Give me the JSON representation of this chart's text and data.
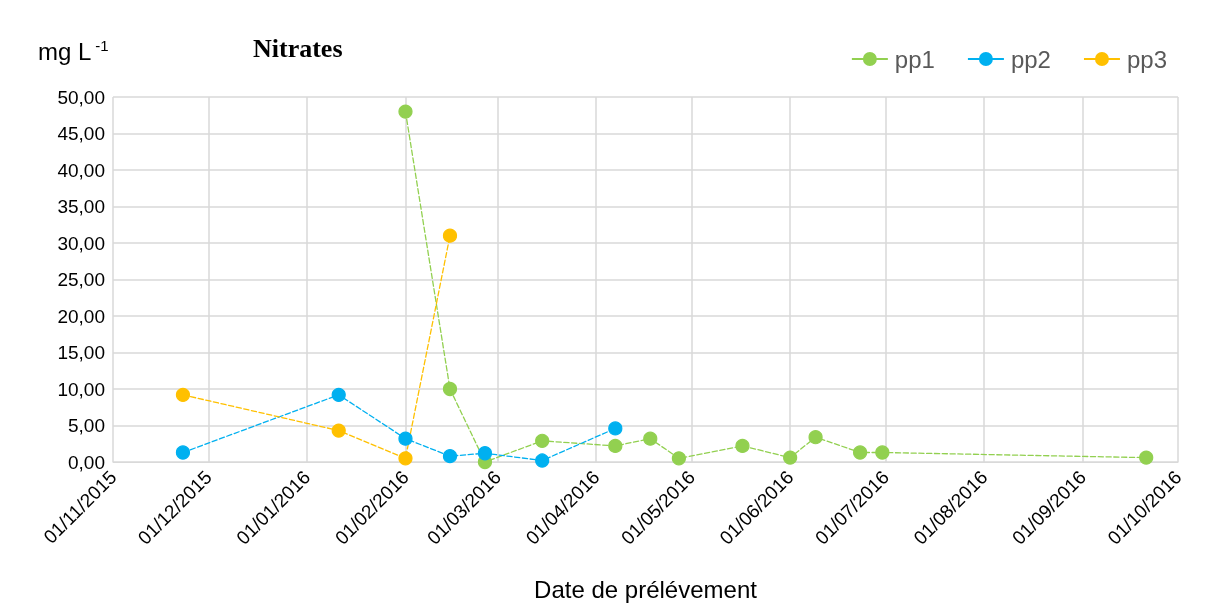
{
  "chart_data": {
    "type": "line",
    "title": "Nitrates",
    "xlabel": "Date de prélévement",
    "ylabel": "mg L$^{-1}$",
    "series": [
      {
        "name": "pp1",
        "color": "#92d050",
        "x": [
          "2016-02-01",
          "2016-02-15",
          "2016-02-26",
          "2016-03-15",
          "2016-04-07",
          "2016-04-18",
          "2016-04-27",
          "2016-05-17",
          "2016-06-01",
          "2016-06-09",
          "2016-06-23",
          "2016-06-30",
          "2016-09-21"
        ],
        "values": [
          48,
          10,
          0,
          2.9,
          2.2,
          3.2,
          0.5,
          2.2,
          0.6,
          3.4,
          1.3,
          1.3,
          0.6
        ]
      },
      {
        "name": "pp2",
        "color": "#00b0f0",
        "x": [
          "2015-11-23",
          "2016-01-11",
          "2016-02-01",
          "2016-02-15",
          "2016-02-26",
          "2016-03-15",
          "2016-04-07"
        ],
        "values": [
          1.3,
          9.2,
          3.2,
          0.8,
          1.2,
          0.2,
          4.6
        ]
      },
      {
        "name": "pp3",
        "color": "#ffc000",
        "x": [
          "2015-11-23",
          "2016-01-11",
          "2016-02-01",
          "2016-02-15"
        ],
        "values": [
          9.2,
          4.3,
          0.5,
          31
        ]
      }
    ],
    "xlim": [
      "2015-11-01",
      "2016-10-01"
    ],
    "xticks": [
      {
        "value": "2015-11-01",
        "label": "01/11/2015"
      },
      {
        "value": "2015-12-01",
        "label": "01/12/2015"
      },
      {
        "value": "2016-01-01",
        "label": "01/01/2016"
      },
      {
        "value": "2016-02-01",
        "label": "01/02/2016"
      },
      {
        "value": "2016-03-01",
        "label": "01/03/2016"
      },
      {
        "value": "2016-04-01",
        "label": "01/04/2016"
      },
      {
        "value": "2016-05-01",
        "label": "01/05/2016"
      },
      {
        "value": "2016-06-01",
        "label": "01/06/2016"
      },
      {
        "value": "2016-07-01",
        "label": "01/07/2016"
      },
      {
        "value": "2016-08-01",
        "label": "01/08/2016"
      },
      {
        "value": "2016-09-01",
        "label": "01/09/2016"
      },
      {
        "value": "2016-10-01",
        "label": "01/10/2016"
      }
    ],
    "ylim": [
      0,
      50
    ],
    "yticks": [
      {
        "value": 0,
        "label": "0,00"
      },
      {
        "value": 5,
        "label": "5,00"
      },
      {
        "value": 10,
        "label": "10,00"
      },
      {
        "value": 15,
        "label": "15,00"
      },
      {
        "value": 20,
        "label": "20,00"
      },
      {
        "value": 25,
        "label": "25,00"
      },
      {
        "value": 30,
        "label": "30,00"
      },
      {
        "value": 35,
        "label": "35,00"
      },
      {
        "value": 40,
        "label": "40,00"
      },
      {
        "value": 45,
        "label": "45,00"
      },
      {
        "value": 50,
        "label": "50,00"
      }
    ],
    "grid": true,
    "legend": "top right",
    "marker": "circle",
    "line_style": "dashed"
  }
}
